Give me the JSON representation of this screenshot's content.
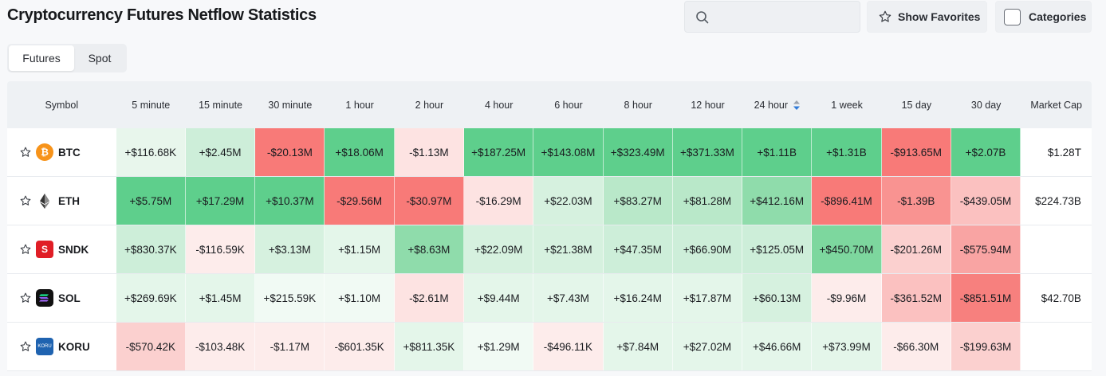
{
  "page": {
    "title": "Cryptocurrency Futures Netflow Statistics"
  },
  "search": {
    "value": "",
    "icon": "search-icon"
  },
  "toolbar": {
    "favorites_label": "Show Favorites",
    "categories_label": "Categories"
  },
  "tabs": [
    {
      "label": "Futures",
      "active": true
    },
    {
      "label": "Spot",
      "active": false
    }
  ],
  "table": {
    "headers": [
      "Symbol",
      "5 minute",
      "15 minute",
      "30 minute",
      "1 hour",
      "2 hour",
      "4 hour",
      "6 hour",
      "8 hour",
      "12 hour",
      "24 hour",
      "1 week",
      "15 day",
      "30 day",
      "Market Cap"
    ],
    "sorted_column": "24 hour",
    "rows": [
      {
        "symbol": "BTC",
        "logo": "bitcoin-logo-icon",
        "values": [
          "+$116.68K",
          "+$2.45M",
          "-$20.13M",
          "+$18.06M",
          "-$1.13M",
          "+$187.25M",
          "+$143.08M",
          "+$323.49M",
          "+$371.33M",
          "+$1.11B",
          "+$1.31B",
          "-$913.65M",
          "+$2.07B"
        ],
        "colors": [
          "#e8f6ec",
          "#cdeed9",
          "#f87a78",
          "#5ecf8c",
          "#fde3e2",
          "#5ecf8c",
          "#5ecf8c",
          "#5ecf8c",
          "#5ecf8c",
          "#5ecf8c",
          "#5ecf8c",
          "#f87a78",
          "#5ecf8c"
        ],
        "market_cap": "$1.28T"
      },
      {
        "symbol": "ETH",
        "logo": "ethereum-logo-icon",
        "values": [
          "+$5.75M",
          "+$17.29M",
          "+$10.37M",
          "-$29.56M",
          "-$30.97M",
          "-$16.29M",
          "+$22.03M",
          "+$83.27M",
          "+$81.28M",
          "+$412.16M",
          "-$896.41M",
          "-$1.39B",
          "-$439.05M"
        ],
        "colors": [
          "#5ecf8c",
          "#5ecf8c",
          "#5ecf8c",
          "#f87a78",
          "#f87a78",
          "#fde3e2",
          "#d6f1df",
          "#b9e8c9",
          "#b9e8c9",
          "#8fdcab",
          "#f87a78",
          "#f99391",
          "#fbc1c0"
        ],
        "market_cap": "$224.73B"
      },
      {
        "symbol": "SNDK",
        "logo": "sandisk-logo-icon",
        "values": [
          "+$830.37K",
          "-$116.59K",
          "+$3.13M",
          "+$1.15M",
          "+$8.63M",
          "+$22.09M",
          "+$21.38M",
          "+$47.35M",
          "+$66.90M",
          "+$125.05M",
          "+$450.70M",
          "-$201.26M",
          "-$575.94M"
        ],
        "colors": [
          "#cdeed9",
          "#fdeceb",
          "#d6f1df",
          "#e4f6ea",
          "#8fdcab",
          "#d6f1df",
          "#d6f1df",
          "#cdeed9",
          "#cdeed9",
          "#cdeed9",
          "#7dd79e",
          "#fbd0cf",
          "#f9a4a3"
        ],
        "market_cap": ""
      },
      {
        "symbol": "SOL",
        "logo": "solana-logo-icon",
        "values": [
          "+$269.69K",
          "+$1.45M",
          "+$215.59K",
          "+$1.10M",
          "-$2.61M",
          "+$9.44M",
          "+$7.43M",
          "+$16.24M",
          "+$17.87M",
          "+$60.13M",
          "-$9.96M",
          "-$361.52M",
          "-$851.51M"
        ],
        "colors": [
          "#e4f6ea",
          "#e4f6ea",
          "#f1faf4",
          "#f1faf4",
          "#fde3e2",
          "#e4f6ea",
          "#e4f6ea",
          "#e4f6ea",
          "#e4f6ea",
          "#d6f1df",
          "#fdeceb",
          "#fbc1c0",
          "#f7807e"
        ],
        "market_cap": "$42.70B"
      },
      {
        "symbol": "KORU",
        "logo": "koru-logo-icon",
        "values": [
          "-$570.42K",
          "-$103.48K",
          "-$1.17M",
          "-$601.35K",
          "+$811.35K",
          "+$1.29M",
          "-$496.11K",
          "+$7.84M",
          "+$27.02M",
          "+$46.66M",
          "+$73.99M",
          "-$66.30M",
          "-$199.63M"
        ],
        "colors": [
          "#fbd0cf",
          "#fdeceb",
          "#fdeceb",
          "#fdeceb",
          "#e4f6ea",
          "#f1faf4",
          "#fdeceb",
          "#e4f6ea",
          "#e4f6ea",
          "#e4f6ea",
          "#e4f6ea",
          "#fdeceb",
          "#fbd0cf"
        ],
        "market_cap": ""
      }
    ]
  }
}
